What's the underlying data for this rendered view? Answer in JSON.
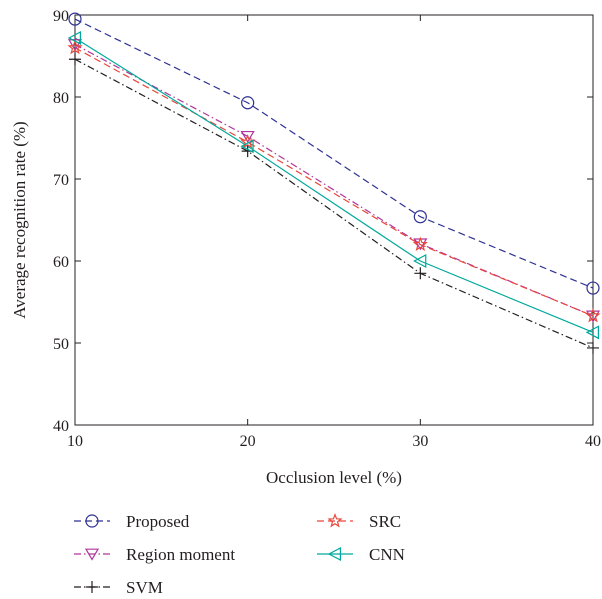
{
  "chart_data": {
    "type": "line",
    "title": "",
    "xlabel": "Occlusion level (%)",
    "ylabel": "Average recognition rate (%)",
    "x": [
      10,
      20,
      30,
      40
    ],
    "xlim": [
      10,
      40
    ],
    "ylim": [
      40,
      90
    ],
    "xticks": [
      "10",
      "20",
      "30",
      "40"
    ],
    "yticks": [
      "40",
      "50",
      "60",
      "70",
      "80",
      "90"
    ],
    "grid": false,
    "legend_position": "below",
    "series": [
      {
        "name": "Proposed",
        "values": [
          89.5,
          79.3,
          65.4,
          56.7
        ],
        "color": "#2e3192",
        "dash": "dashed",
        "marker": "circle"
      },
      {
        "name": "Region moment",
        "values": [
          86.4,
          75.2,
          62.1,
          53.3
        ],
        "color": "#b0359b",
        "dash": "dashdot",
        "marker": "triangle-down"
      },
      {
        "name": "SVM",
        "values": [
          84.6,
          73.4,
          58.5,
          49.4
        ],
        "color": "#231f20",
        "dash": "dashdot",
        "marker": "plus"
      },
      {
        "name": "SRC",
        "values": [
          86.0,
          74.5,
          62.0,
          53.3
        ],
        "color": "#e8473b",
        "dash": "dashed",
        "marker": "star"
      },
      {
        "name": "CNN",
        "values": [
          87.2,
          74.0,
          60.0,
          51.3
        ],
        "color": "#00a99d",
        "dash": "solid",
        "marker": "triangle-left"
      }
    ]
  }
}
